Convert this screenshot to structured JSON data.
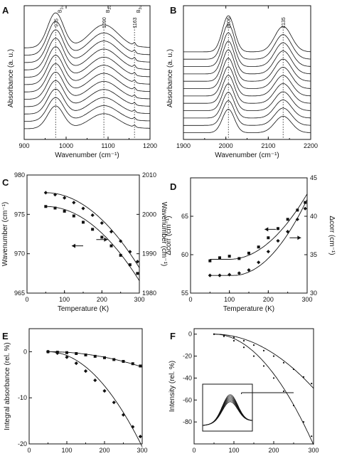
{
  "figure": {
    "panels": [
      {
        "id": "A",
        "letter": "A"
      },
      {
        "id": "B",
        "letter": "B"
      },
      {
        "id": "C",
        "letter": "C"
      },
      {
        "id": "D",
        "letter": "D"
      },
      {
        "id": "E",
        "letter": "E"
      },
      {
        "id": "F",
        "letter": "F"
      }
    ]
  },
  "chart_data": [
    {
      "id": "A",
      "type": "line",
      "xlabel": "Wavenumber (cm⁻¹)",
      "ylabel": "Absorbance (a. u.)",
      "xlim": [
        900,
        1200
      ],
      "xticks": [
        900,
        1000,
        1100,
        1200
      ],
      "ylim": [
        0,
        1
      ],
      "show_yticks": false,
      "num_series": 12,
      "series_offset": 0.055,
      "peaks": [
        {
          "center": 975,
          "amp": 0.26,
          "width": 27
        },
        {
          "center": 1090,
          "amp": 0.17,
          "width": 48
        },
        {
          "center": 1163,
          "amp": 0.02,
          "width": 4
        }
      ],
      "baseline_start": 0.08,
      "baseline_slope": 1e-05,
      "annotations": [
        {
          "x": 975,
          "label": "975",
          "sym": "B",
          "sub": "1u"
        },
        {
          "x": 1090,
          "label": "1090",
          "sym": "B",
          "sub": "2u"
        },
        {
          "x": 1163,
          "label": "1163",
          "sym": "B",
          "sub": "3u"
        }
      ]
    },
    {
      "id": "B",
      "type": "line",
      "xlabel": "Wavenumber (cm⁻¹)",
      "ylabel": "Absorbance (a. u.)",
      "xlim": [
        1900,
        2200
      ],
      "xticks": [
        1900,
        2000,
        2100,
        2200
      ],
      "ylim": [
        0,
        1
      ],
      "show_yticks": false,
      "num_series": 12,
      "series_offset": 0.055,
      "peaks": [
        {
          "center": 2006,
          "amp": 0.27,
          "width": 20
        },
        {
          "center": 2135,
          "amp": 0.19,
          "width": 28
        }
      ],
      "baseline_start": 0.05,
      "baseline_slope": 0.0,
      "annotations": [
        {
          "x": 2006,
          "label": "2006",
          "sym": "",
          "sub": ""
        },
        {
          "x": 2135,
          "label": "2135",
          "sym": "",
          "sub": ""
        }
      ]
    },
    {
      "id": "C",
      "type": "scatter",
      "xlabel": "Temperature (K)",
      "ylabel": "Wavenumber (cm⁻¹)",
      "y2label": "Wavenumber (cm⁻¹)",
      "xlim": [
        0,
        300
      ],
      "xticks": [
        0,
        100,
        200,
        300
      ],
      "ylim": [
        965,
        980
      ],
      "yticks": [
        965,
        970,
        975,
        980
      ],
      "y2lim": [
        1980,
        2010
      ],
      "y2ticks": [
        1980,
        1990,
        2000,
        2010
      ],
      "series": [
        {
          "name": "",
          "axis": "left",
          "marker": "square",
          "x": [
            50,
            75,
            100,
            125,
            150,
            175,
            200,
            225,
            250,
            275,
            295
          ],
          "y": [
            976.0,
            975.8,
            975.4,
            974.8,
            974.0,
            973.1,
            972.1,
            971.0,
            969.8,
            968.6,
            967.5
          ],
          "fit": "quadratic",
          "t0": 50
        },
        {
          "name": "",
          "axis": "right",
          "marker": "diamond",
          "x": [
            50,
            75,
            100,
            125,
            150,
            175,
            200,
            225,
            250,
            275,
            295
          ],
          "y": [
            2005.5,
            2005.0,
            2004.2,
            2003.0,
            2001.5,
            1999.8,
            1997.8,
            1995.6,
            1993.2,
            1990.5,
            1988.0
          ],
          "fit": "quadratic",
          "t0": 50
        }
      ],
      "arrows": [
        {
          "at": [
            150,
            971.0
          ],
          "dir": "left"
        },
        {
          "at": [
            185,
            971.8
          ],
          "dir": "right"
        }
      ]
    },
    {
      "id": "D",
      "type": "scatter",
      "xlabel": "Temperature (K)",
      "ylabel": "Δcorr (cm⁻¹)",
      "y2label": "Δcorr (cm⁻¹)",
      "xlim": [
        0,
        300
      ],
      "xticks": [
        0,
        100,
        200,
        300
      ],
      "ylim": [
        55,
        70
      ],
      "yticks": [
        55,
        60,
        65
      ],
      "y2lim": [
        30,
        45
      ],
      "y2ticks": [
        30,
        35,
        40,
        45
      ],
      "series": [
        {
          "name": "",
          "axis": "left",
          "marker": "square",
          "x": [
            50,
            75,
            100,
            125,
            150,
            175,
            200,
            225,
            250,
            275,
            295
          ],
          "y": [
            59.2,
            59.6,
            59.8,
            59.5,
            60.2,
            61.0,
            62.2,
            63.4,
            64.6,
            65.8,
            66.8
          ],
          "fit": "quadratic",
          "t0": 100,
          "base": 59.4
        },
        {
          "name": "",
          "axis": "right",
          "marker": "diamond",
          "x": [
            50,
            75,
            100,
            125,
            150,
            175,
            200,
            225,
            250,
            275,
            295
          ],
          "y": [
            32.3,
            32.3,
            32.4,
            32.6,
            33.0,
            34.0,
            35.4,
            36.8,
            38.0,
            39.6,
            41.0
          ],
          "fit": "quadratic",
          "t0": 110,
          "base": 32.3
        }
      ],
      "arrows": [
        {
          "at": [
            220,
            63.3
          ],
          "dir": "left"
        },
        {
          "at": [
            255,
            62.2
          ],
          "dir": "right"
        }
      ]
    },
    {
      "id": "E",
      "type": "scatter",
      "xlabel": "Temperature (K)",
      "ylabel": "Integral absorbance (rel. %)",
      "xlim": [
        0,
        300
      ],
      "xticks": [
        0,
        100,
        200,
        300
      ],
      "ylim": [
        -20,
        5
      ],
      "yticks": [
        -20,
        -10,
        0
      ],
      "series": [
        {
          "name": "",
          "marker": "square",
          "x": [
            50,
            75,
            100,
            125,
            150,
            175,
            200,
            225,
            250,
            275,
            295
          ],
          "y": [
            0.0,
            -0.1,
            -0.2,
            -0.4,
            -0.7,
            -1.0,
            -1.3,
            -1.7,
            -2.1,
            -2.6,
            -3.1
          ],
          "fit": "quadratic",
          "t0": 50
        },
        {
          "name": "",
          "marker": "diamond",
          "x": [
            50,
            75,
            100,
            125,
            150,
            175,
            200,
            225,
            250,
            275,
            295
          ],
          "y": [
            0.0,
            -0.3,
            -1.2,
            -2.5,
            -4.2,
            -6.2,
            -8.5,
            -11.0,
            -13.7,
            -16.3,
            -18.4
          ],
          "fit": "quadratic",
          "t0": 50
        }
      ]
    },
    {
      "id": "F",
      "type": "scatter",
      "xlabel": "Temperature (K)",
      "ylabel": "Intensity (rel. %)",
      "xlim": [
        0,
        300
      ],
      "xticks": [
        0,
        100,
        200,
        300
      ],
      "ylim": [
        -100,
        5
      ],
      "yticks": [
        -80,
        -60,
        -40,
        -20,
        0
      ],
      "series": [
        {
          "name": "",
          "marker": "dot",
          "x": [
            50,
            75,
            100,
            125,
            150,
            175,
            200,
            225,
            250,
            275,
            295
          ],
          "y": [
            0,
            -1,
            -3,
            -6,
            -10,
            -15,
            -20,
            -26,
            -32,
            -39,
            -45
          ],
          "fit": "quadratic",
          "t0": 50
        },
        {
          "name": "",
          "marker": "dot",
          "x": [
            50,
            75,
            100,
            125,
            150,
            175,
            200,
            225,
            250,
            275,
            295
          ],
          "y": [
            0,
            -2,
            -6,
            -12,
            -20,
            -29,
            -40,
            -52,
            -65,
            -80,
            -93
          ],
          "fit": "quadratic",
          "t0": 50
        }
      ],
      "inset": true
    }
  ]
}
